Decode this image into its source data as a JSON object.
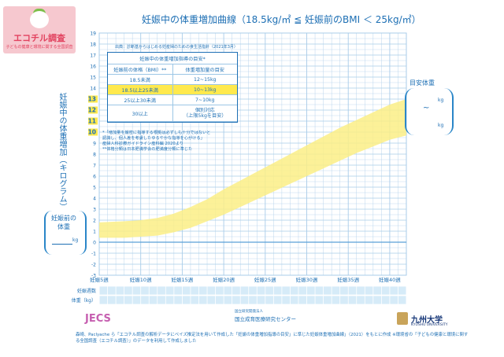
{
  "logo": {
    "text": "エコチル調査",
    "sub": "子どもの健康と環境に関する全国調査"
  },
  "chart_data": {
    "type": "area",
    "title": "妊娠中の体重増加曲線（18.5kg/㎡ ≦ 妊娠前のBMI ＜ 25kg/㎡）",
    "ylabel": "妊娠中の体重増加（キログラム）",
    "ylim": [
      -3,
      19
    ],
    "yticks": [
      -3,
      -2,
      -1,
      0,
      1,
      2,
      3,
      4,
      5,
      6,
      7,
      8,
      9,
      10,
      11,
      12,
      13,
      14,
      15,
      16,
      17,
      18,
      19
    ],
    "highlight_ticks": [
      10,
      11,
      12,
      13
    ],
    "xlim": [
      5,
      42
    ],
    "x_tick_labels": [
      {
        "week": 5,
        "label": "妊娠5週"
      },
      {
        "week": 10,
        "label": "妊娠10週"
      },
      {
        "week": 15,
        "label": "妊娠15週"
      },
      {
        "week": 20,
        "label": "妊娠20週"
      },
      {
        "week": 25,
        "label": "妊娠25週"
      },
      {
        "week": 30,
        "label": "妊娠30週"
      },
      {
        "week": 35,
        "label": "妊娠35週"
      },
      {
        "week": 40,
        "label": "妊娠40週"
      }
    ],
    "band": {
      "weeks": [
        5,
        8,
        10,
        12,
        14,
        16,
        18,
        20,
        22,
        24,
        26,
        28,
        30,
        32,
        34,
        36,
        38,
        40,
        42
      ],
      "upper": [
        1.8,
        1.9,
        2.0,
        2.2,
        2.6,
        3.2,
        3.9,
        4.8,
        5.6,
        6.4,
        7.2,
        8.0,
        8.8,
        9.6,
        10.4,
        11.1,
        11.8,
        12.5,
        13.0
      ],
      "lower": [
        0.4,
        0.4,
        0.5,
        0.6,
        0.9,
        1.3,
        1.9,
        2.5,
        3.2,
        3.9,
        4.6,
        5.3,
        6.0,
        6.7,
        7.4,
        8.1,
        8.7,
        9.3,
        9.7
      ]
    },
    "grid": true,
    "colors": {
      "band": "#fbef86",
      "grid": "#a9cce9",
      "axis": "#1d6fb4",
      "highlight": "#ffe94d"
    }
  },
  "source": "出典：診断基からはじめる妊産婦のための食生活指針（2021年3月）",
  "guide": {
    "title": "妊娠中の体重増加指導の目安*",
    "col1": "妊娠前の体格（BMI）**",
    "col2": "体重増加量の目安",
    "rows": [
      {
        "bmi": "18.5未満",
        "gain": "12~15kg"
      },
      {
        "bmi": "18.5以上25未満",
        "gain": "10~13kg"
      },
      {
        "bmi": "25以上30未満",
        "gain": "7~10kg"
      },
      {
        "bmi": "30以上",
        "gain": "個別対応\n（上限5kgを目安）"
      }
    ]
  },
  "notes": [
    "*「増加量を厳密に指導する根拠は必ずしも十分ではないと",
    "認識し、個人差を考慮したゆるやかな指導を心がける」",
    "産婦人科診療ガイドライン産科編 2020より",
    "**体格分類は日本肥満学会の肥満度分類に準じた"
  ],
  "left_box": {
    "label": "妊娠前の体重",
    "unit": "kg"
  },
  "right_box": {
    "label": "目安体重",
    "unit": "kg",
    "tilde": "~"
  },
  "table_rows": {
    "week_row": "妊娠週数",
    "weight_row": "体重（kg）"
  },
  "logos": {
    "jecs": "JECS",
    "ncchd_sub": "国立研究開発法人",
    "ncchd": "国立成育医療研究センター",
    "kyushu": "九州大学",
    "kyushu_en": "KYUSHU UNIVERSITY"
  },
  "footer": "森崎、Paclyache ら「エコチル調査の解析データにベイズ推定法を用いて作成した「妊娠の体重増加指導の目安」に準じた妊娠体重増加曲線」（2021）をもとに作成 ※環境省の「子どもの健康と環境に関する全国調査（エコチル調査）」のデータを利用して作成しました"
}
